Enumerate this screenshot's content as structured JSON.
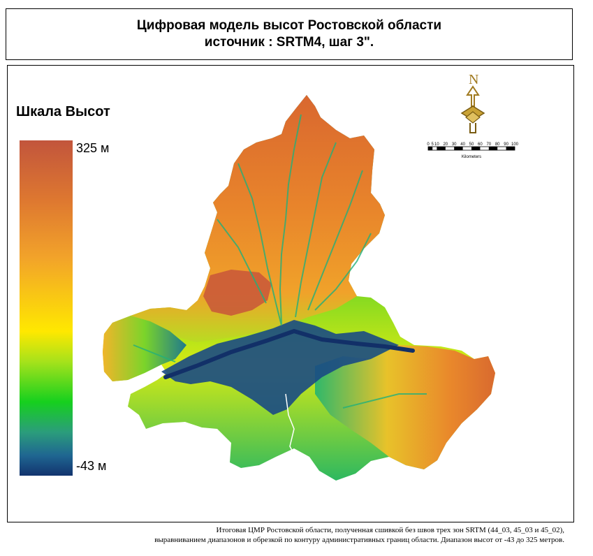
{
  "title": {
    "line1": "Цифровая модель высот Ростовской области",
    "line2": "источник : SRTM4, шаг 3\"."
  },
  "legend": {
    "title": "Шкала Высот",
    "max_label": "325 м",
    "min_label": "-43 м",
    "max_value": 325,
    "min_value": -43,
    "colors": [
      "#c2553c",
      "#de7830",
      "#f2a32a",
      "#ffe800",
      "#a6e21b",
      "#16d01e",
      "#2b9d7b",
      "#1f6691",
      "#12336e"
    ]
  },
  "north_arrow": {
    "letter": "N",
    "icon": "north-arrow-icon"
  },
  "scale_bar": {
    "ticks": [
      "0",
      "5",
      "10",
      "20",
      "30",
      "40",
      "50",
      "60",
      "70",
      "80",
      "90",
      "100"
    ],
    "unit": "Kilometers"
  },
  "caption": {
    "line1": "Итоговая ЦМР Ростовской области, полученная сшивкой без швов трех зон SRTM (44_03, 45_03 и 45_02),",
    "line2": "выравниванием диапазонов и обрезкой по контуру административных границ области. Диапазон высот от -43 до 325 метров."
  }
}
